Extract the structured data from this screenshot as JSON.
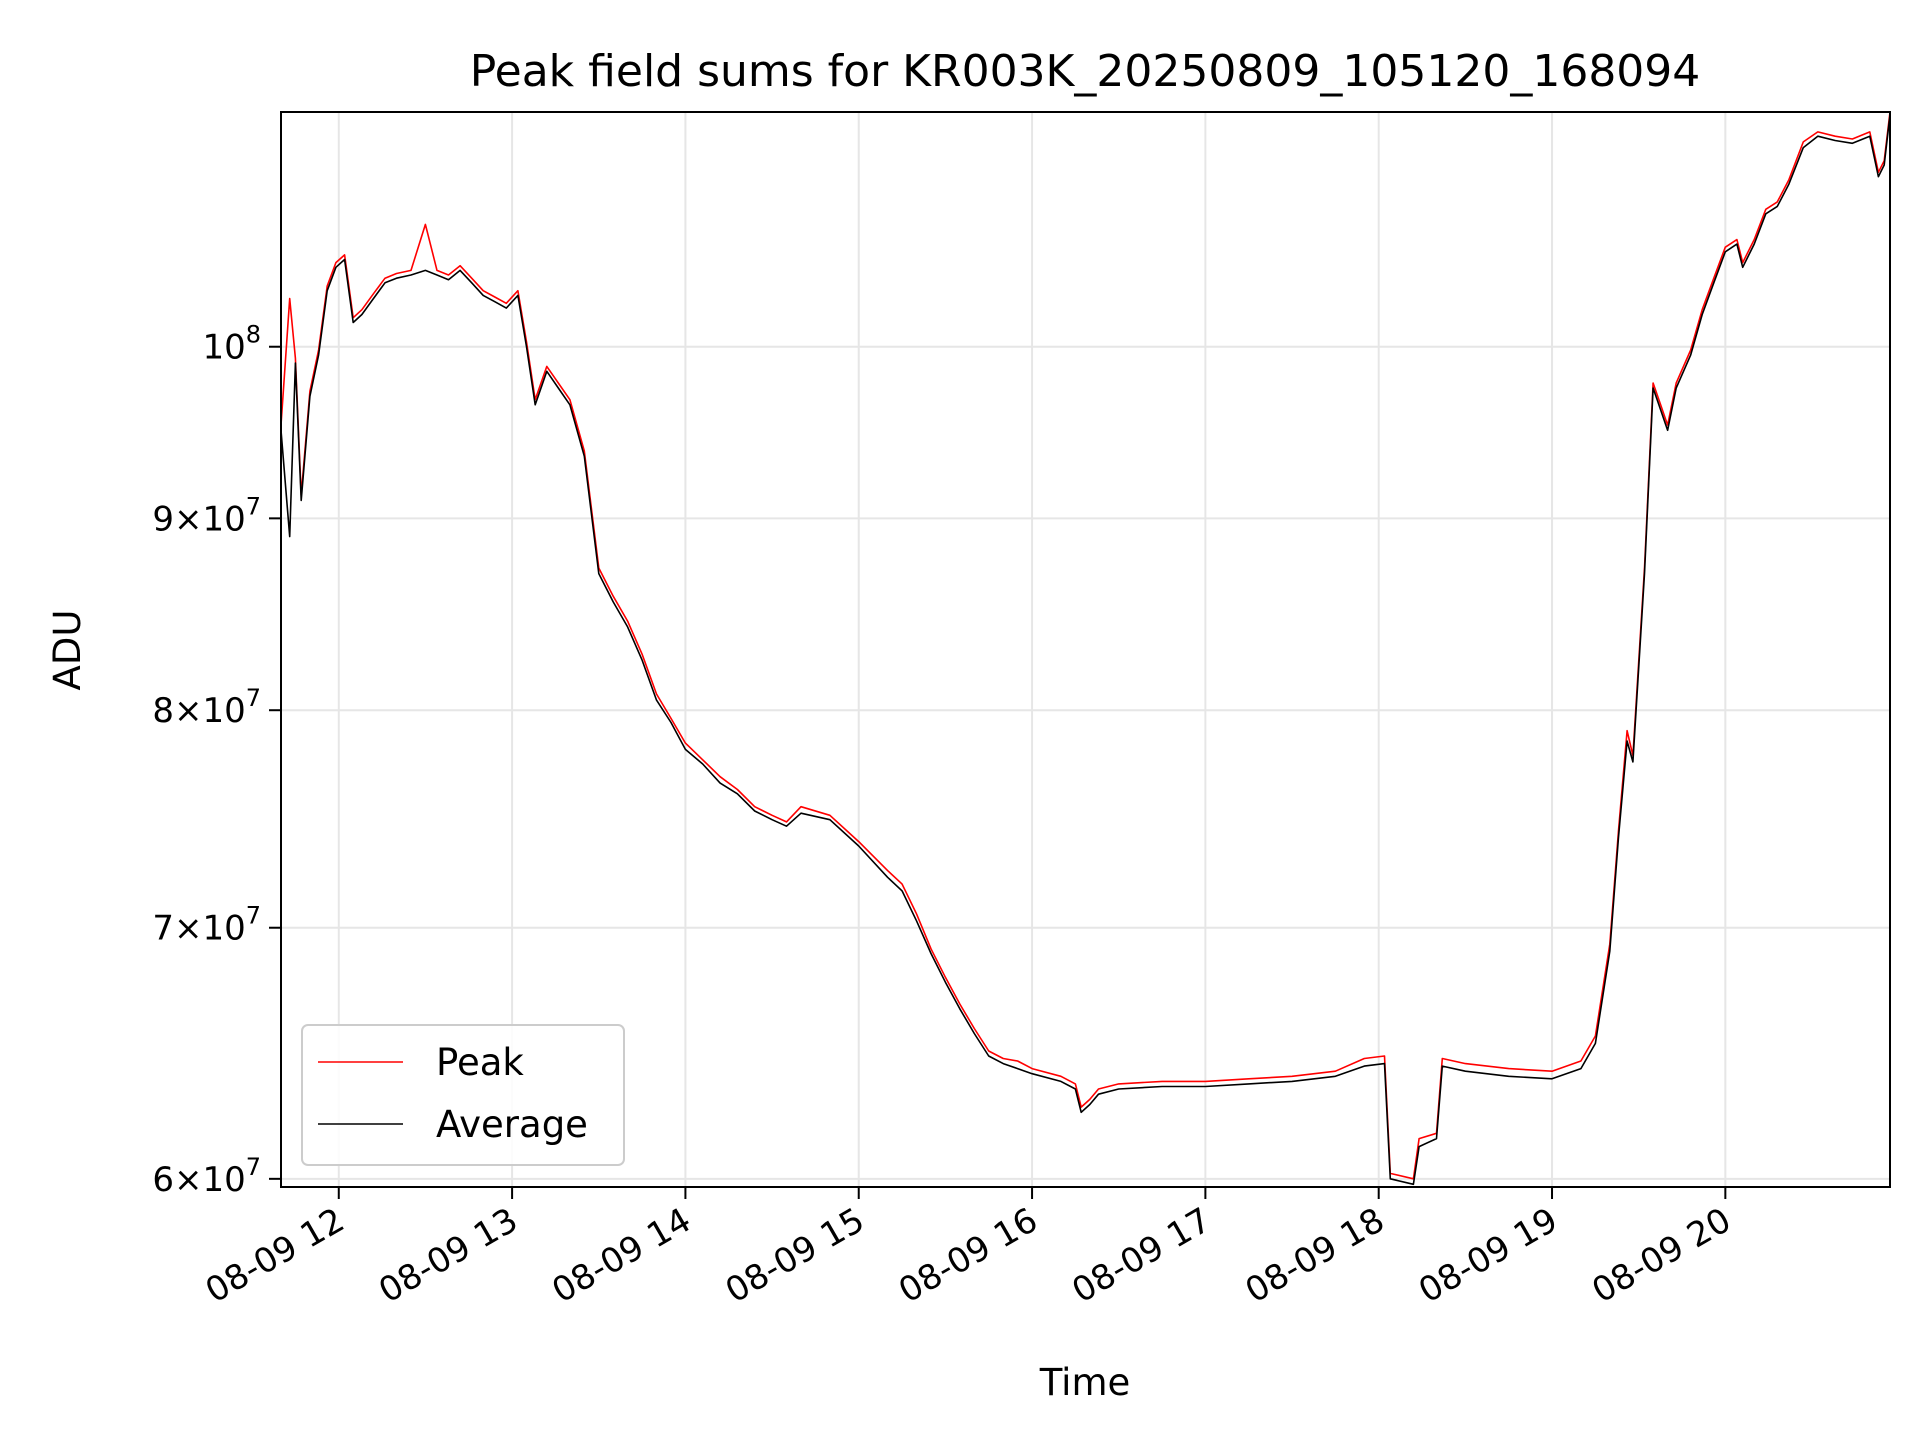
{
  "chart_data": {
    "type": "line",
    "title": "Peak field sums for KR003K_20250809_105120_168094",
    "xlabel": "Time",
    "ylabel": "ADU",
    "y_scale": "log",
    "ylim": [
      59700000,
      115500000
    ],
    "xlim": [
      "2025-08-09 11:40",
      "2025-08-09 20:57"
    ],
    "grid": true,
    "legend_position": "lower-left",
    "x_ticks": [
      {
        "label": "08-09 12",
        "time": "2025-08-09 12:00"
      },
      {
        "label": "08-09 13",
        "time": "2025-08-09 13:00"
      },
      {
        "label": "08-09 14",
        "time": "2025-08-09 14:00"
      },
      {
        "label": "08-09 15",
        "time": "2025-08-09 15:00"
      },
      {
        "label": "08-09 16",
        "time": "2025-08-09 16:00"
      },
      {
        "label": "08-09 17",
        "time": "2025-08-09 17:00"
      },
      {
        "label": "08-09 18",
        "time": "2025-08-09 18:00"
      },
      {
        "label": "08-09 19",
        "time": "2025-08-09 19:00"
      },
      {
        "label": "08-09 20",
        "time": "2025-08-09 20:00"
      }
    ],
    "y_ticks": [
      {
        "base": "6",
        "exp": "7",
        "value": 60000000
      },
      {
        "base": "7",
        "exp": "7",
        "value": 70000000
      },
      {
        "base": "8",
        "exp": "7",
        "value": 80000000
      },
      {
        "base": "9",
        "exp": "7",
        "value": 90000000
      },
      {
        "base": "",
        "exp": "8",
        "value": 100000000
      }
    ],
    "series": [
      {
        "name": "Average",
        "color": "#000000",
        "points": [
          [
            "2025-08-09 11:40",
            95.0
          ],
          [
            "2025-08-09 11:43",
            89.0
          ],
          [
            "2025-08-09 11:45",
            99.0
          ],
          [
            "2025-08-09 11:47",
            91.0
          ],
          [
            "2025-08-09 11:50",
            97.0
          ],
          [
            "2025-08-09 11:53",
            99.5
          ],
          [
            "2025-08-09 11:56",
            103.5
          ],
          [
            "2025-08-09 11:59",
            105.0
          ],
          [
            "2025-08-09 12:02",
            105.5
          ],
          [
            "2025-08-09 12:05",
            101.5
          ],
          [
            "2025-08-09 12:08",
            102.0
          ],
          [
            "2025-08-09 12:12",
            103.0
          ],
          [
            "2025-08-09 12:16",
            104.0
          ],
          [
            "2025-08-09 12:20",
            104.3
          ],
          [
            "2025-08-09 12:25",
            104.5
          ],
          [
            "2025-08-09 12:30",
            104.8
          ],
          [
            "2025-08-09 12:34",
            104.5
          ],
          [
            "2025-08-09 12:38",
            104.2
          ],
          [
            "2025-08-09 12:42",
            104.8
          ],
          [
            "2025-08-09 12:46",
            104.0
          ],
          [
            "2025-08-09 12:50",
            103.2
          ],
          [
            "2025-08-09 12:54",
            102.8
          ],
          [
            "2025-08-09 12:58",
            102.4
          ],
          [
            "2025-08-09 13:02",
            103.2
          ],
          [
            "2025-08-09 13:05",
            100.0
          ],
          [
            "2025-08-09 13:08",
            96.5
          ],
          [
            "2025-08-09 13:12",
            98.5
          ],
          [
            "2025-08-09 13:16",
            97.5
          ],
          [
            "2025-08-09 13:20",
            96.5
          ],
          [
            "2025-08-09 13:25",
            93.5
          ],
          [
            "2025-08-09 13:30",
            87.0
          ],
          [
            "2025-08-09 13:35",
            85.5
          ],
          [
            "2025-08-09 13:40",
            84.2
          ],
          [
            "2025-08-09 13:45",
            82.5
          ],
          [
            "2025-08-09 13:50",
            80.5
          ],
          [
            "2025-08-09 13:55",
            79.4
          ],
          [
            "2025-08-09 14:00",
            78.1
          ],
          [
            "2025-08-09 14:06",
            77.4
          ],
          [
            "2025-08-09 14:12",
            76.5
          ],
          [
            "2025-08-09 14:18",
            76.0
          ],
          [
            "2025-08-09 14:24",
            75.2
          ],
          [
            "2025-08-09 14:30",
            74.8
          ],
          [
            "2025-08-09 14:35",
            74.5
          ],
          [
            "2025-08-09 14:40",
            75.1
          ],
          [
            "2025-08-09 14:50",
            74.8
          ],
          [
            "2025-08-09 15:00",
            73.6
          ],
          [
            "2025-08-09 15:10",
            72.2
          ],
          [
            "2025-08-09 15:15",
            71.6
          ],
          [
            "2025-08-09 15:20",
            70.3
          ],
          [
            "2025-08-09 15:25",
            68.9
          ],
          [
            "2025-08-09 15:30",
            67.7
          ],
          [
            "2025-08-09 15:35",
            66.6
          ],
          [
            "2025-08-09 15:40",
            65.6
          ],
          [
            "2025-08-09 15:45",
            64.7
          ],
          [
            "2025-08-09 15:50",
            64.4
          ],
          [
            "2025-08-09 15:55",
            64.2
          ],
          [
            "2025-08-09 16:00",
            64.0
          ],
          [
            "2025-08-09 16:10",
            63.7
          ],
          [
            "2025-08-09 16:15",
            63.4
          ],
          [
            "2025-08-09 16:17",
            62.5
          ],
          [
            "2025-08-09 16:20",
            62.8
          ],
          [
            "2025-08-09 16:23",
            63.2
          ],
          [
            "2025-08-09 16:30",
            63.4
          ],
          [
            "2025-08-09 16:45",
            63.5
          ],
          [
            "2025-08-09 17:00",
            63.5
          ],
          [
            "2025-08-09 17:15",
            63.6
          ],
          [
            "2025-08-09 17:30",
            63.7
          ],
          [
            "2025-08-09 17:45",
            63.9
          ],
          [
            "2025-08-09 17:55",
            64.3
          ],
          [
            "2025-08-09 18:02",
            64.4
          ],
          [
            "2025-08-09 18:04",
            60.0
          ],
          [
            "2025-08-09 18:12",
            59.8
          ],
          [
            "2025-08-09 18:14",
            61.2
          ],
          [
            "2025-08-09 18:20",
            61.5
          ],
          [
            "2025-08-09 18:22",
            64.3
          ],
          [
            "2025-08-09 18:30",
            64.1
          ],
          [
            "2025-08-09 18:45",
            63.9
          ],
          [
            "2025-08-09 19:00",
            63.8
          ],
          [
            "2025-08-09 19:10",
            64.2
          ],
          [
            "2025-08-09 19:15",
            65.2
          ],
          [
            "2025-08-09 19:20",
            69.0
          ],
          [
            "2025-08-09 19:23",
            74.0
          ],
          [
            "2025-08-09 19:26",
            78.5
          ],
          [
            "2025-08-09 19:28",
            77.5
          ],
          [
            "2025-08-09 19:32",
            87.0
          ],
          [
            "2025-08-09 19:35",
            97.5
          ],
          [
            "2025-08-09 19:38",
            96.0
          ],
          [
            "2025-08-09 19:40",
            95.0
          ],
          [
            "2025-08-09 19:43",
            97.5
          ],
          [
            "2025-08-09 19:48",
            99.5
          ],
          [
            "2025-08-09 19:52",
            102.0
          ],
          [
            "2025-08-09 19:56",
            104.0
          ],
          [
            "2025-08-09 20:00",
            106.0
          ],
          [
            "2025-08-09 20:04",
            106.5
          ],
          [
            "2025-08-09 20:06",
            105.0
          ],
          [
            "2025-08-09 20:10",
            106.5
          ],
          [
            "2025-08-09 20:14",
            108.5
          ],
          [
            "2025-08-09 20:18",
            109.0
          ],
          [
            "2025-08-09 20:22",
            110.5
          ],
          [
            "2025-08-09 20:27",
            113.0
          ],
          [
            "2025-08-09 20:32",
            113.8
          ],
          [
            "2025-08-09 20:38",
            113.5
          ],
          [
            "2025-08-09 20:44",
            113.3
          ],
          [
            "2025-08-09 20:50",
            113.8
          ],
          [
            "2025-08-09 20:53",
            111.0
          ],
          [
            "2025-08-09 20:55",
            111.8
          ],
          [
            "2025-08-09 20:57",
            115.3
          ]
        ]
      },
      {
        "name": "Peak",
        "color": "#ff0000",
        "points": [
          [
            "2025-08-09 11:40",
            95.3
          ],
          [
            "2025-08-09 11:43",
            103.0
          ],
          [
            "2025-08-09 11:45",
            99.3
          ],
          [
            "2025-08-09 11:47",
            91.3
          ],
          [
            "2025-08-09 11:50",
            97.3
          ],
          [
            "2025-08-09 11:53",
            99.8
          ],
          [
            "2025-08-09 11:56",
            103.8
          ],
          [
            "2025-08-09 11:59",
            105.3
          ],
          [
            "2025-08-09 12:02",
            105.8
          ],
          [
            "2025-08-09 12:05",
            101.8
          ],
          [
            "2025-08-09 12:08",
            102.3
          ],
          [
            "2025-08-09 12:12",
            103.3
          ],
          [
            "2025-08-09 12:16",
            104.3
          ],
          [
            "2025-08-09 12:20",
            104.6
          ],
          [
            "2025-08-09 12:25",
            104.8
          ],
          [
            "2025-08-09 12:30",
            107.8
          ],
          [
            "2025-08-09 12:34",
            104.8
          ],
          [
            "2025-08-09 12:38",
            104.5
          ],
          [
            "2025-08-09 12:42",
            105.1
          ],
          [
            "2025-08-09 12:46",
            104.3
          ],
          [
            "2025-08-09 12:50",
            103.5
          ],
          [
            "2025-08-09 12:54",
            103.1
          ],
          [
            "2025-08-09 12:58",
            102.7
          ],
          [
            "2025-08-09 13:02",
            103.5
          ],
          [
            "2025-08-09 13:05",
            100.3
          ],
          [
            "2025-08-09 13:08",
            96.8
          ],
          [
            "2025-08-09 13:12",
            98.8
          ],
          [
            "2025-08-09 13:16",
            97.8
          ],
          [
            "2025-08-09 13:20",
            96.8
          ],
          [
            "2025-08-09 13:25",
            93.8
          ],
          [
            "2025-08-09 13:30",
            87.3
          ],
          [
            "2025-08-09 13:35",
            85.8
          ],
          [
            "2025-08-09 13:40",
            84.5
          ],
          [
            "2025-08-09 13:45",
            82.8
          ],
          [
            "2025-08-09 13:50",
            80.8
          ],
          [
            "2025-08-09 13:55",
            79.6
          ],
          [
            "2025-08-09 14:00",
            78.4
          ],
          [
            "2025-08-09 14:06",
            77.6
          ],
          [
            "2025-08-09 14:12",
            76.8
          ],
          [
            "2025-08-09 14:18",
            76.2
          ],
          [
            "2025-08-09 14:24",
            75.4
          ],
          [
            "2025-08-09 14:30",
            75.0
          ],
          [
            "2025-08-09 14:35",
            74.7
          ],
          [
            "2025-08-09 14:40",
            75.4
          ],
          [
            "2025-08-09 14:50",
            75.0
          ],
          [
            "2025-08-09 15:00",
            73.8
          ],
          [
            "2025-08-09 15:10",
            72.5
          ],
          [
            "2025-08-09 15:15",
            71.9
          ],
          [
            "2025-08-09 15:20",
            70.6
          ],
          [
            "2025-08-09 15:25",
            69.1
          ],
          [
            "2025-08-09 15:30",
            67.9
          ],
          [
            "2025-08-09 15:35",
            66.8
          ],
          [
            "2025-08-09 15:40",
            65.8
          ],
          [
            "2025-08-09 15:45",
            64.9
          ],
          [
            "2025-08-09 15:50",
            64.6
          ],
          [
            "2025-08-09 15:55",
            64.5
          ],
          [
            "2025-08-09 16:00",
            64.2
          ],
          [
            "2025-08-09 16:10",
            63.9
          ],
          [
            "2025-08-09 16:15",
            63.6
          ],
          [
            "2025-08-09 16:17",
            62.7
          ],
          [
            "2025-08-09 16:20",
            63.0
          ],
          [
            "2025-08-09 16:23",
            63.4
          ],
          [
            "2025-08-09 16:30",
            63.6
          ],
          [
            "2025-08-09 16:45",
            63.7
          ],
          [
            "2025-08-09 17:00",
            63.7
          ],
          [
            "2025-08-09 17:15",
            63.8
          ],
          [
            "2025-08-09 17:30",
            63.9
          ],
          [
            "2025-08-09 17:45",
            64.1
          ],
          [
            "2025-08-09 17:55",
            64.6
          ],
          [
            "2025-08-09 18:02",
            64.7
          ],
          [
            "2025-08-09 18:04",
            60.2
          ],
          [
            "2025-08-09 18:12",
            60.0
          ],
          [
            "2025-08-09 18:14",
            61.5
          ],
          [
            "2025-08-09 18:20",
            61.7
          ],
          [
            "2025-08-09 18:22",
            64.6
          ],
          [
            "2025-08-09 18:30",
            64.4
          ],
          [
            "2025-08-09 18:45",
            64.2
          ],
          [
            "2025-08-09 19:00",
            64.1
          ],
          [
            "2025-08-09 19:10",
            64.5
          ],
          [
            "2025-08-09 19:15",
            65.5
          ],
          [
            "2025-08-09 19:20",
            69.3
          ],
          [
            "2025-08-09 19:23",
            74.3
          ],
          [
            "2025-08-09 19:26",
            79.0
          ],
          [
            "2025-08-09 19:28",
            77.8
          ],
          [
            "2025-08-09 19:32",
            87.3
          ],
          [
            "2025-08-09 19:35",
            97.8
          ],
          [
            "2025-08-09 19:38",
            96.3
          ],
          [
            "2025-08-09 19:40",
            95.3
          ],
          [
            "2025-08-09 19:43",
            97.8
          ],
          [
            "2025-08-09 19:48",
            99.8
          ],
          [
            "2025-08-09 19:52",
            102.3
          ],
          [
            "2025-08-09 19:56",
            104.3
          ],
          [
            "2025-08-09 20:00",
            106.3
          ],
          [
            "2025-08-09 20:04",
            106.8
          ],
          [
            "2025-08-09 20:06",
            105.3
          ],
          [
            "2025-08-09 20:10",
            106.8
          ],
          [
            "2025-08-09 20:14",
            108.8
          ],
          [
            "2025-08-09 20:18",
            109.3
          ],
          [
            "2025-08-09 20:22",
            110.8
          ],
          [
            "2025-08-09 20:27",
            113.4
          ],
          [
            "2025-08-09 20:32",
            114.1
          ],
          [
            "2025-08-09 20:38",
            113.8
          ],
          [
            "2025-08-09 20:44",
            113.6
          ],
          [
            "2025-08-09 20:50",
            114.1
          ],
          [
            "2025-08-09 20:53",
            111.3
          ],
          [
            "2025-08-09 20:55",
            112.1
          ],
          [
            "2025-08-09 20:57",
            115.5
          ]
        ]
      }
    ],
    "y_unit_note": "y values are in millions of ADU (×10^6)"
  }
}
